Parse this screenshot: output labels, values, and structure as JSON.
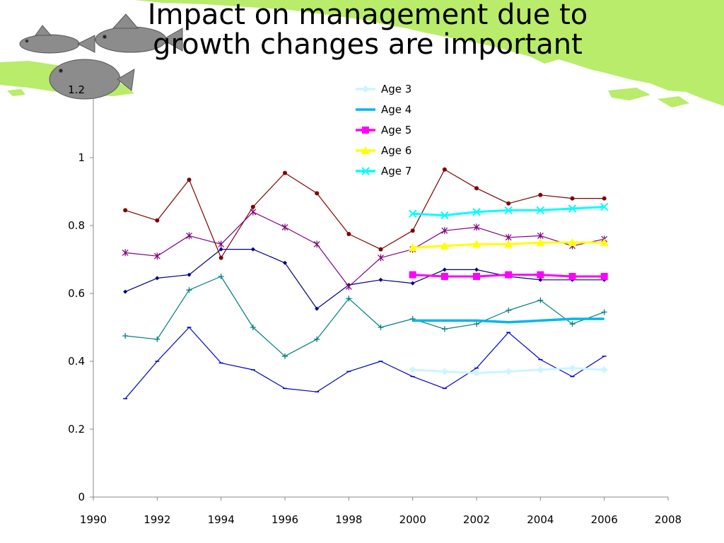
{
  "slide": {
    "title": "Impact on management due to\ngrowth changes are important"
  },
  "colors": {
    "land": "#b8ec6a",
    "fish": "#8c8c8c"
  },
  "chart_data": {
    "type": "line",
    "title": "",
    "xlabel": "",
    "ylabel": "",
    "xlim": [
      1990,
      2008
    ],
    "ylim": [
      0,
      1.2
    ],
    "xticks": [
      "1990",
      "1992",
      "1994",
      "1996",
      "1998",
      "2000",
      "2002",
      "2004",
      "2006",
      "2008"
    ],
    "yticks": [
      "0",
      "0.2",
      "0.4",
      "0.6",
      "0.8",
      "1",
      "1.2"
    ],
    "grid": false,
    "legend_position": "top-center",
    "legend": [
      {
        "label": "Age 3",
        "color": "#ccf5ff",
        "marker": "diamond"
      },
      {
        "label": "Age 4",
        "color": "#00b6ee",
        "marker": "none"
      },
      {
        "label": "Age 5",
        "color": "#ff00ff",
        "marker": "square"
      },
      {
        "label": "Age 6",
        "color": "#ffff00",
        "marker": "triangle"
      },
      {
        "label": "Age 7",
        "color": "#00ffff",
        "marker": "x"
      }
    ],
    "series": [
      {
        "color": "#0000cc",
        "marker": "dash",
        "width": 1.2,
        "x": [
          1991,
          1992,
          1993,
          1994,
          1995,
          1996,
          1997,
          1998,
          1999,
          2000,
          2001,
          2002,
          2003,
          2004,
          2005,
          2006
        ],
        "y": [
          0.29,
          0.4,
          0.5,
          0.395,
          0.375,
          0.32,
          0.31,
          0.37,
          0.4,
          0.355,
          0.32,
          0.38,
          0.485,
          0.405,
          0.355,
          0.415
        ]
      },
      {
        "color": "#008080",
        "marker": "plus",
        "width": 1.2,
        "x": [
          1991,
          1992,
          1993,
          1994,
          1995,
          1996,
          1997,
          1998,
          1999,
          2000,
          2001,
          2002,
          2003,
          2004,
          2005,
          2006
        ],
        "y": [
          0.475,
          0.465,
          0.61,
          0.65,
          0.5,
          0.415,
          0.465,
          0.585,
          0.5,
          0.525,
          0.495,
          0.51,
          0.55,
          0.58,
          0.51,
          0.545
        ]
      },
      {
        "color": "#000080",
        "marker": "diamond",
        "width": 1.2,
        "x": [
          1991,
          1992,
          1993,
          1994,
          1995,
          1996,
          1997,
          1998,
          1999,
          2000,
          2001,
          2002,
          2003,
          2004,
          2005,
          2006
        ],
        "y": [
          0.605,
          0.645,
          0.655,
          0.73,
          0.73,
          0.69,
          0.555,
          0.625,
          0.64,
          0.63,
          0.67,
          0.67,
          0.65,
          0.64,
          0.64,
          0.64
        ]
      },
      {
        "color": "#800080",
        "marker": "asterisk",
        "width": 1.2,
        "x": [
          1991,
          1992,
          1993,
          1994,
          1995,
          1996,
          1997,
          1998,
          1999,
          2000,
          2001,
          2002,
          2003,
          2004,
          2005,
          2006
        ],
        "y": [
          0.72,
          0.71,
          0.77,
          0.745,
          0.84,
          0.795,
          0.745,
          0.62,
          0.705,
          0.73,
          0.785,
          0.795,
          0.765,
          0.77,
          0.74,
          0.76
        ]
      },
      {
        "color": "#800000",
        "marker": "circle",
        "width": 1.2,
        "x": [
          1991,
          1992,
          1993,
          1994,
          1995,
          1996,
          1997,
          1998,
          1999,
          2000,
          2001,
          2002,
          2003,
          2004,
          2005,
          2006
        ],
        "y": [
          0.845,
          0.815,
          0.935,
          0.705,
          0.855,
          0.955,
          0.895,
          0.775,
          0.73,
          0.785,
          0.965,
          0.91,
          0.865,
          0.89,
          0.88,
          0.88
        ]
      },
      {
        "name": "Age 3",
        "color": "#ccf5ff",
        "marker": "diamond",
        "width": 3,
        "x": [
          2000,
          2001,
          2002,
          2003,
          2004,
          2005,
          2006
        ],
        "y": [
          0.375,
          0.37,
          0.365,
          0.37,
          0.375,
          0.38,
          0.375
        ]
      },
      {
        "name": "Age 4",
        "color": "#00b6ee",
        "marker": "none",
        "width": 3.5,
        "x": [
          2000,
          2001,
          2002,
          2003,
          2004,
          2005,
          2006
        ],
        "y": [
          0.52,
          0.52,
          0.52,
          0.515,
          0.52,
          0.525,
          0.525
        ]
      },
      {
        "name": "Age 5",
        "color": "#ff00ff",
        "marker": "square",
        "width": 3,
        "x": [
          2000,
          2001,
          2002,
          2003,
          2004,
          2005,
          2006
        ],
        "y": [
          0.655,
          0.65,
          0.65,
          0.655,
          0.655,
          0.65,
          0.65
        ]
      },
      {
        "name": "Age 6",
        "color": "#ffff00",
        "marker": "triangle",
        "width": 3,
        "x": [
          2000,
          2001,
          2002,
          2003,
          2004,
          2005,
          2006
        ],
        "y": [
          0.735,
          0.74,
          0.745,
          0.745,
          0.75,
          0.75,
          0.75
        ]
      },
      {
        "name": "Age 7",
        "color": "#00ffff",
        "marker": "x",
        "width": 3,
        "x": [
          2000,
          2001,
          2002,
          2003,
          2004,
          2005,
          2006
        ],
        "y": [
          0.835,
          0.83,
          0.84,
          0.845,
          0.845,
          0.85,
          0.855
        ]
      }
    ]
  }
}
